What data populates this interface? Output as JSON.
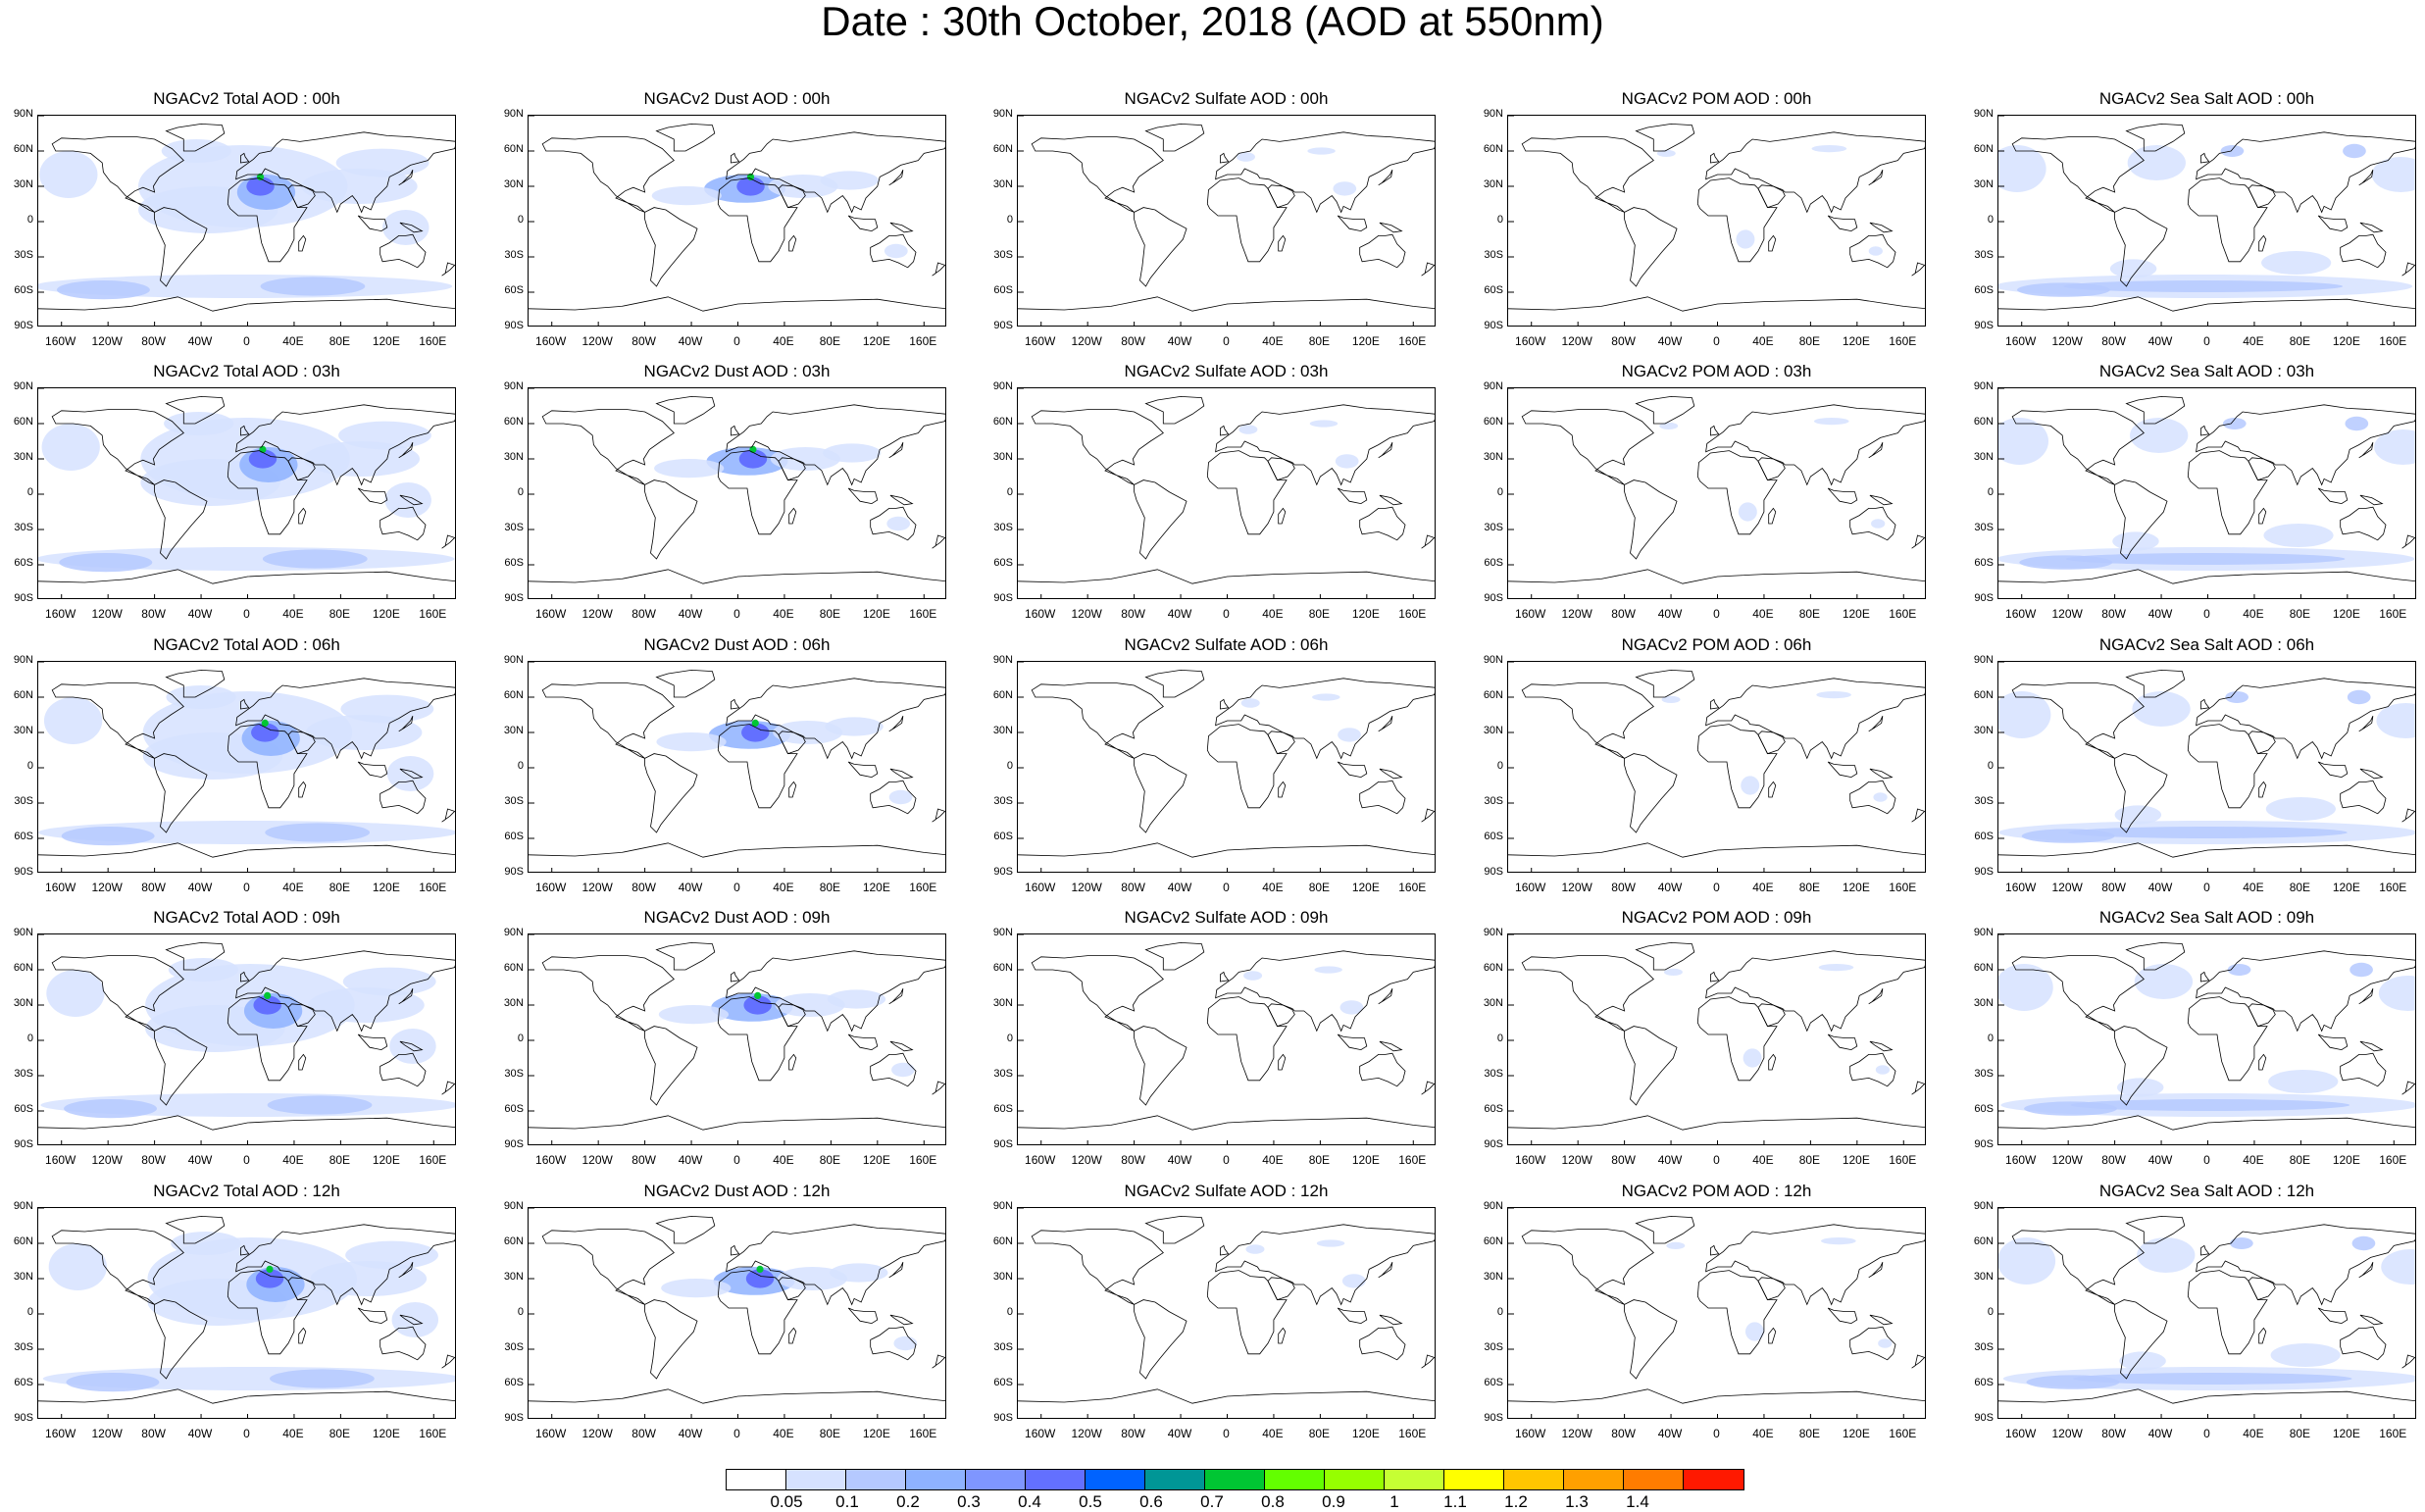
{
  "title": "Date : 30th October, 2018 (AOD at 550nm)",
  "panel_titles": [
    [
      "NGACv2 Total AOD : 00h",
      "NGACv2 Dust AOD : 00h",
      "NGACv2 Sulfate AOD : 00h",
      "NGACv2 POM AOD : 00h",
      "NGACv2 Sea Salt AOD : 00h"
    ],
    [
      "NGACv2 Total AOD : 03h",
      "NGACv2 Dust AOD : 03h",
      "NGACv2 Sulfate AOD : 03h",
      "NGACv2 POM AOD : 03h",
      "NGACv2 Sea Salt AOD : 03h"
    ],
    [
      "NGACv2 Total AOD : 06h",
      "NGACv2 Dust AOD : 06h",
      "NGACv2 Sulfate AOD : 06h",
      "NGACv2 POM AOD : 06h",
      "NGACv2 Sea Salt AOD : 06h"
    ],
    [
      "NGACv2 Total AOD : 09h",
      "NGACv2 Dust AOD : 09h",
      "NGACv2 Sulfate AOD : 09h",
      "NGACv2 POM AOD : 09h",
      "NGACv2 Sea Salt  AOD : 09h"
    ],
    [
      "NGACv2 Total AOD  : 12h",
      "NGACv2 Dust AOD : 12h",
      "NGACv2 Sulfate AOD : 12h",
      "NGACv2 POM  AOD : 12h",
      "NGACv2 Sea Salt  AOD : 12h"
    ]
  ],
  "lat_labels": [
    "90N",
    "60N",
    "30N",
    "0",
    "30S",
    "60S",
    "90S"
  ],
  "lon_labels": [
    "160W",
    "120W",
    "80W",
    "40W",
    "0",
    "40E",
    "80E",
    "120E",
    "160E"
  ],
  "colorbar": {
    "colors": [
      "#ffffff",
      "#d6e2ff",
      "#b5c9ff",
      "#8eb2ff",
      "#7f96ff",
      "#6370ff",
      "#0063ff",
      "#009696",
      "#00c633",
      "#63ff00",
      "#96ff00",
      "#c6ff33",
      "#ffff00",
      "#ffc600",
      "#ffa000",
      "#ff7c00",
      "#ff1900"
    ],
    "labels": [
      "0.05",
      "0.1",
      "0.2",
      "0.3",
      "0.4",
      "0.5",
      "0.6",
      "0.7",
      "0.8",
      "0.9",
      "1",
      "1.1",
      "1.2",
      "1.3",
      "1.4"
    ]
  },
  "fields": [
    "Total AOD",
    "Dust AOD",
    "Sulfate AOD",
    "POM AOD",
    "Sea Salt AOD"
  ],
  "forecast_hours": [
    "00h",
    "03h",
    "06h",
    "09h",
    "12h"
  ]
}
